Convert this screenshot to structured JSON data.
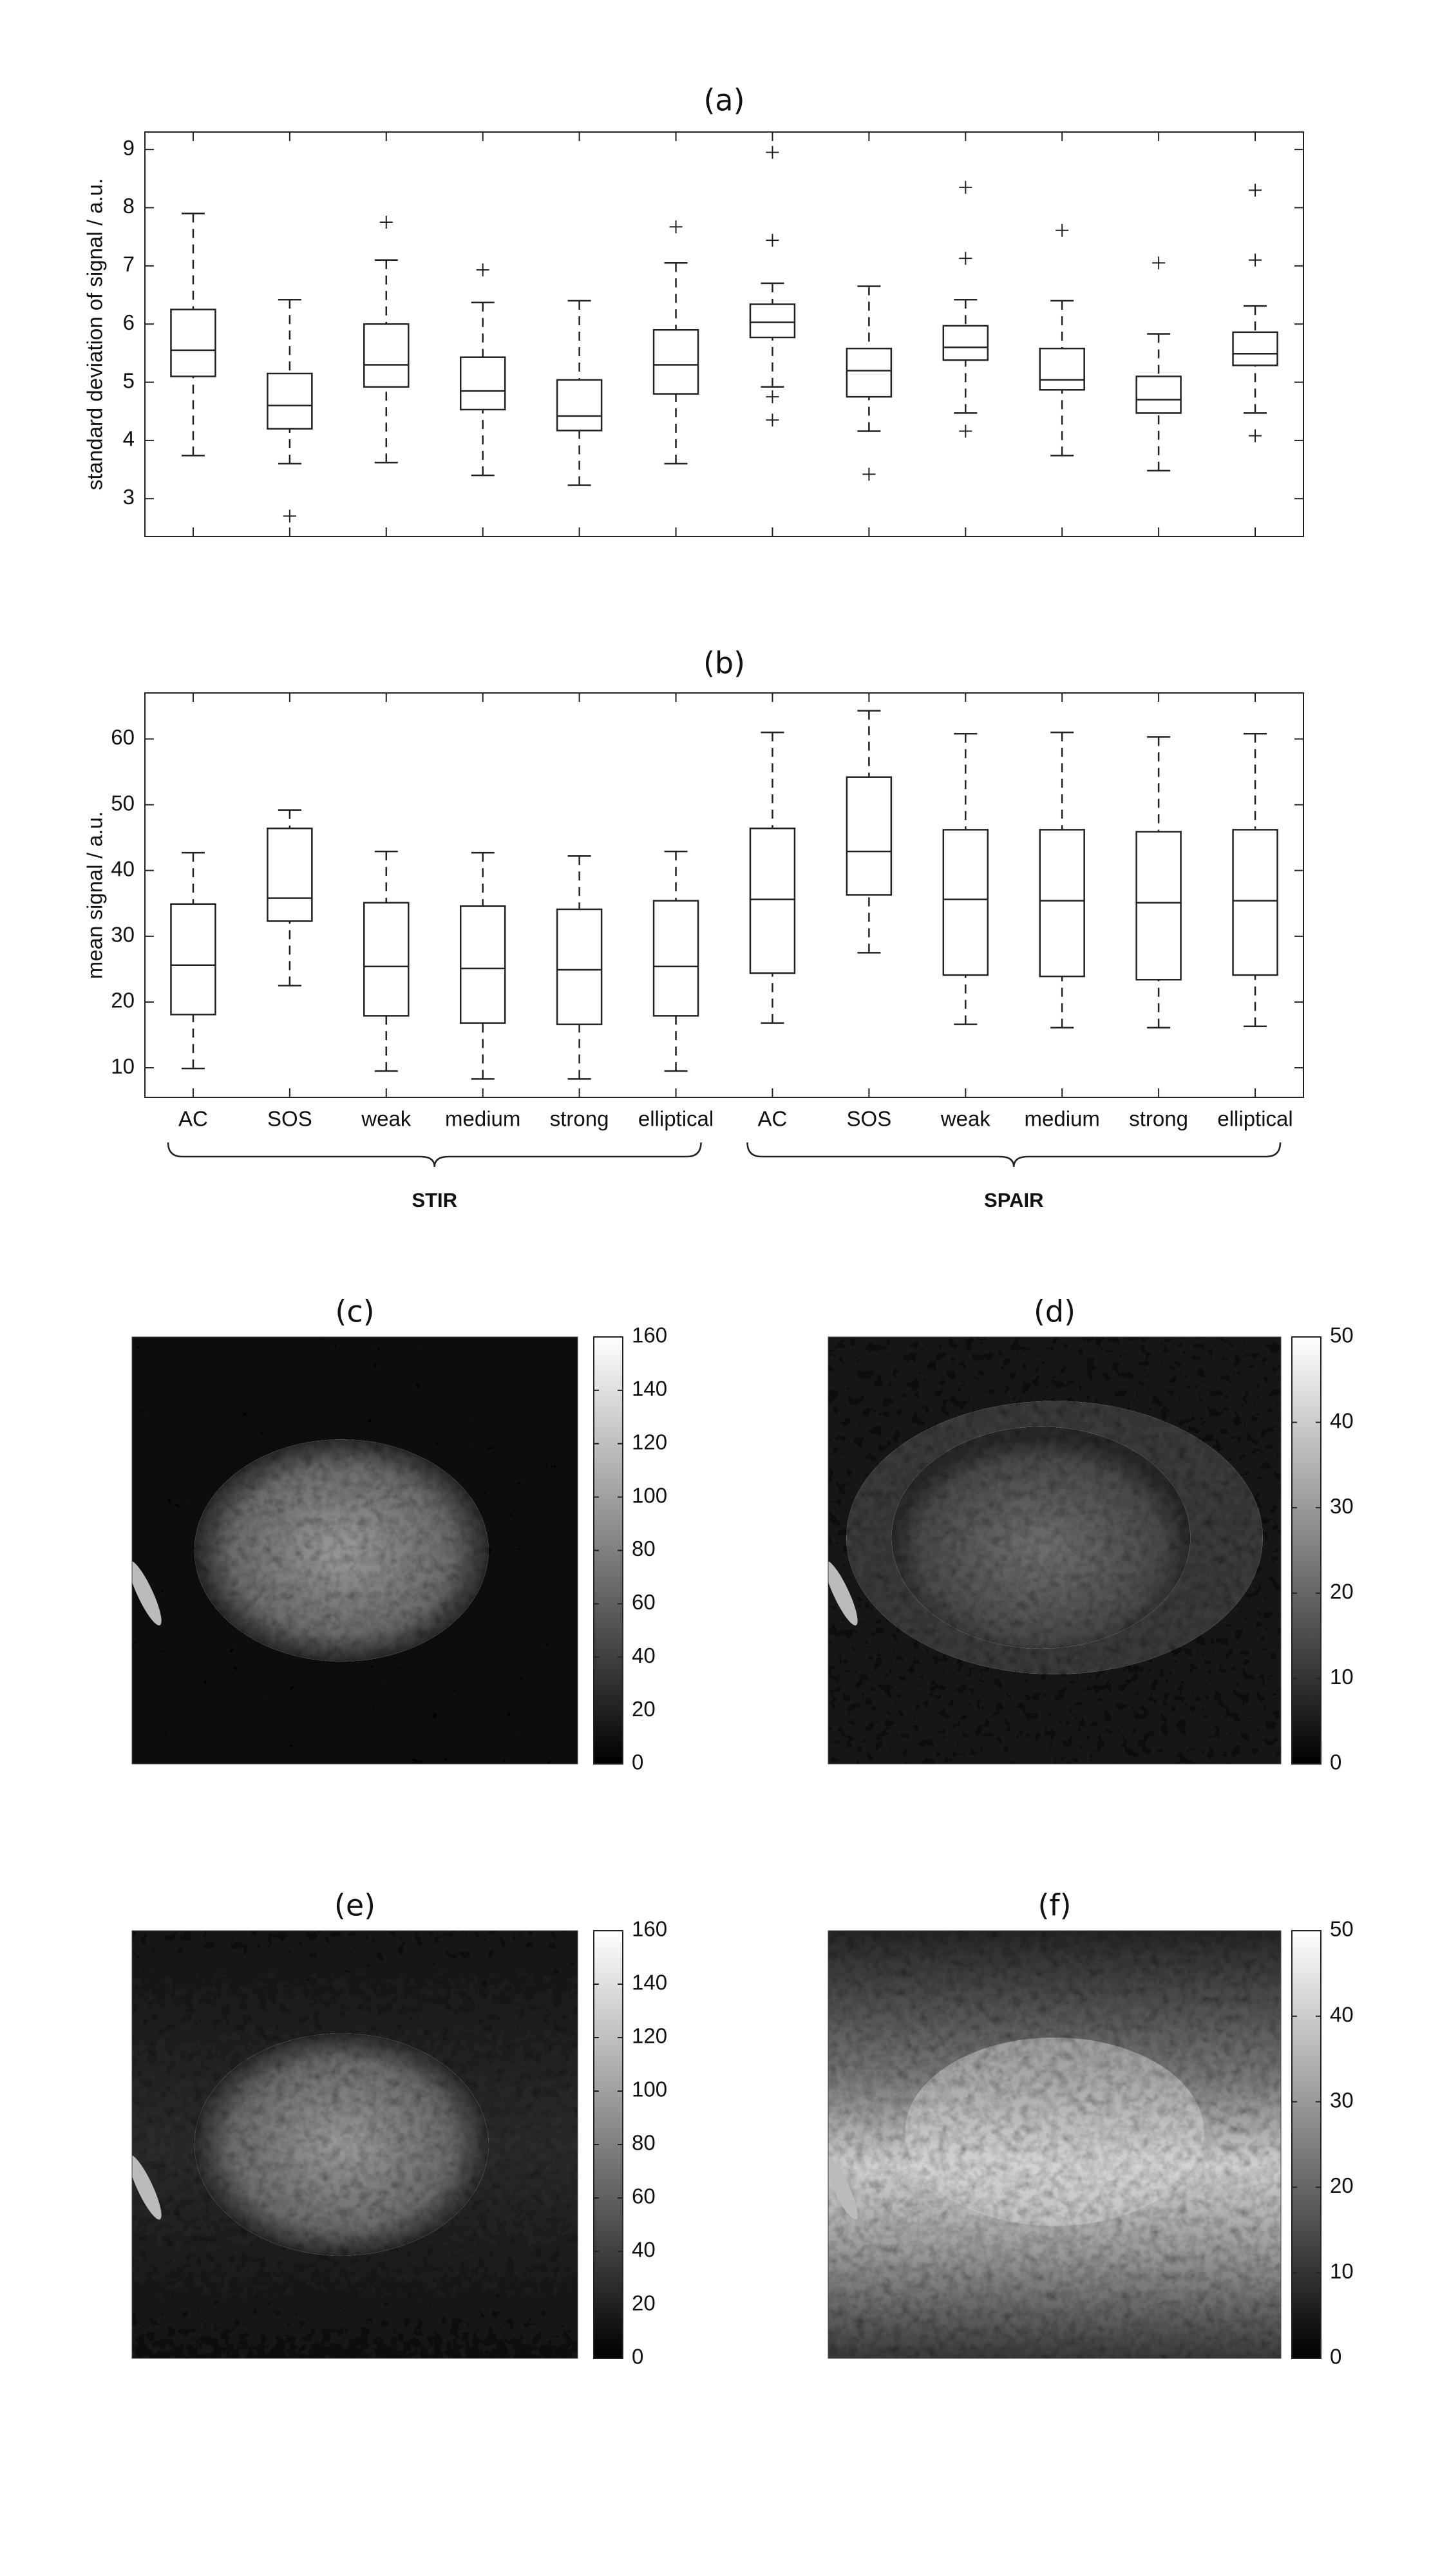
{
  "chart_data": [
    {
      "type": "box",
      "title": "(a)",
      "ylabel": "standard deviation of signal / a.u.",
      "categories": [
        null,
        null,
        null,
        null,
        null,
        null,
        null,
        null,
        null,
        null,
        null,
        null
      ],
      "ylim": [
        2.35,
        9.3
      ],
      "yticks": [
        3,
        4,
        5,
        6,
        7,
        8,
        9
      ],
      "boxes": [
        {
          "whislo": 3.74,
          "q1": 5.1,
          "med": 5.55,
          "q3": 6.25,
          "whishi": 7.9,
          "fliers": []
        },
        {
          "whislo": 3.6,
          "q1": 4.2,
          "med": 4.6,
          "q3": 5.15,
          "whishi": 6.42,
          "fliers": [
            2.7
          ]
        },
        {
          "whislo": 3.62,
          "q1": 4.92,
          "med": 5.3,
          "q3": 6.0,
          "whishi": 7.1,
          "fliers": [
            7.75
          ]
        },
        {
          "whislo": 3.4,
          "q1": 4.53,
          "med": 4.85,
          "q3": 5.43,
          "whishi": 6.37,
          "fliers": [
            6.93
          ]
        },
        {
          "whislo": 3.23,
          "q1": 4.17,
          "med": 4.42,
          "q3": 5.04,
          "whishi": 6.4,
          "fliers": []
        },
        {
          "whislo": 3.6,
          "q1": 4.8,
          "med": 5.3,
          "q3": 5.9,
          "whishi": 7.05,
          "fliers": [
            7.67
          ]
        },
        {
          "whislo": 4.92,
          "q1": 5.77,
          "med": 6.03,
          "q3": 6.34,
          "whishi": 6.7,
          "fliers": [
            8.95,
            7.44,
            4.75,
            4.35
          ]
        },
        {
          "whislo": 4.16,
          "q1": 4.75,
          "med": 5.2,
          "q3": 5.58,
          "whishi": 6.65,
          "fliers": [
            3.42
          ]
        },
        {
          "whislo": 4.47,
          "q1": 5.38,
          "med": 5.6,
          "q3": 5.97,
          "whishi": 6.42,
          "fliers": [
            8.35,
            7.13,
            4.16
          ]
        },
        {
          "whislo": 3.74,
          "q1": 4.87,
          "med": 5.04,
          "q3": 5.58,
          "whishi": 6.4,
          "fliers": [
            7.61
          ]
        },
        {
          "whislo": 3.48,
          "q1": 4.47,
          "med": 4.7,
          "q3": 5.1,
          "whishi": 5.83,
          "fliers": [
            7.05
          ]
        },
        {
          "whislo": 4.47,
          "q1": 5.29,
          "med": 5.49,
          "q3": 5.86,
          "whishi": 6.31,
          "fliers": [
            8.3,
            7.1,
            4.08
          ]
        }
      ]
    },
    {
      "type": "box",
      "title": "(b)",
      "ylabel": "mean signal / a.u.",
      "categories": [
        "AC",
        "SOS",
        "weak",
        "medium",
        "strong",
        "elliptical",
        "AC",
        "SOS",
        "weak",
        "medium",
        "strong",
        "elliptical"
      ],
      "groups": [
        "STIR",
        "SPAIR"
      ],
      "ylim": [
        5.5,
        67
      ],
      "yticks": [
        10,
        20,
        30,
        40,
        50,
        60
      ],
      "boxes": [
        {
          "whislo": 9.9,
          "q1": 18.1,
          "med": 25.6,
          "q3": 34.9,
          "whishi": 42.7,
          "fliers": []
        },
        {
          "whislo": 22.5,
          "q1": 32.3,
          "med": 35.8,
          "q3": 46.4,
          "whishi": 49.2,
          "fliers": []
        },
        {
          "whislo": 9.5,
          "q1": 17.9,
          "med": 25.4,
          "q3": 35.1,
          "whishi": 42.9,
          "fliers": []
        },
        {
          "whislo": 8.3,
          "q1": 16.8,
          "med": 25.1,
          "q3": 34.6,
          "whishi": 42.7,
          "fliers": []
        },
        {
          "whislo": 8.3,
          "q1": 16.6,
          "med": 24.9,
          "q3": 34.1,
          "whishi": 42.2,
          "fliers": []
        },
        {
          "whislo": 9.5,
          "q1": 17.9,
          "med": 25.4,
          "q3": 35.4,
          "whishi": 42.9,
          "fliers": []
        },
        {
          "whislo": 16.8,
          "q1": 24.4,
          "med": 35.6,
          "q3": 46.4,
          "whishi": 61,
          "fliers": []
        },
        {
          "whislo": 27.5,
          "q1": 36.3,
          "med": 42.9,
          "q3": 54.2,
          "whishi": 64.3,
          "fliers": []
        },
        {
          "whislo": 16.6,
          "q1": 24.1,
          "med": 35.6,
          "q3": 46.2,
          "whishi": 60.8,
          "fliers": []
        },
        {
          "whislo": 16.1,
          "q1": 23.9,
          "med": 35.4,
          "q3": 46.2,
          "whishi": 61,
          "fliers": []
        },
        {
          "whislo": 16.1,
          "q1": 23.4,
          "med": 35.1,
          "q3": 45.9,
          "whishi": 60.3,
          "fliers": []
        },
        {
          "whislo": 16.3,
          "q1": 24.1,
          "med": 35.4,
          "q3": 46.2,
          "whishi": 60.8,
          "fliers": []
        }
      ]
    },
    {
      "type": "image",
      "title": "(c)",
      "ylim": [
        0,
        160
      ],
      "yticks": [
        0,
        20,
        40,
        60,
        80,
        100,
        120,
        140,
        160
      ]
    },
    {
      "type": "image",
      "title": "(d)",
      "ylim": [
        0,
        50
      ],
      "yticks": [
        0,
        10,
        20,
        30,
        40,
        50
      ]
    },
    {
      "type": "image",
      "title": "(e)",
      "ylim": [
        0,
        160
      ],
      "yticks": [
        0,
        20,
        40,
        60,
        80,
        100,
        120,
        140,
        160
      ]
    },
    {
      "type": "image",
      "title": "(f)",
      "ylim": [
        0,
        50
      ],
      "yticks": [
        0,
        10,
        20,
        30,
        40,
        50
      ]
    }
  ]
}
